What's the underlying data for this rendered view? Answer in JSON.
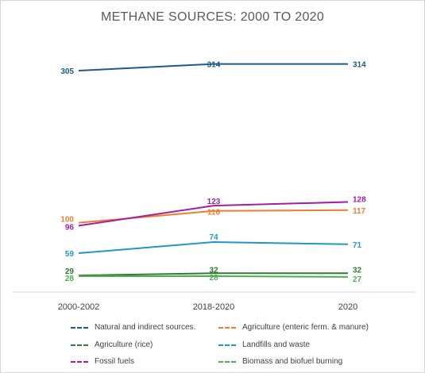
{
  "chart_data": {
    "type": "line",
    "title": "METHANE SOURCES: 2000 TO 2020",
    "categories": [
      "2000-2002",
      "2018-2020",
      "2020"
    ],
    "ylim": [
      0,
      340
    ],
    "grid": false,
    "legend_position": "bottom",
    "series": [
      {
        "name": "Natural and indirect sources.",
        "color": "#1f5a8a",
        "values": [
          305,
          314,
          314
        ]
      },
      {
        "name": "Agriculture (enteric ferm. & manure)",
        "color": "#ed7d31",
        "values": [
          100,
          116,
          117
        ]
      },
      {
        "name": "Agriculture (rice)",
        "color": "#2e7d32",
        "values": [
          29,
          32,
          32
        ]
      },
      {
        "name": "Landfills and waste",
        "color": "#2196c8",
        "values": [
          59,
          74,
          71
        ]
      },
      {
        "name": "Fossil fuels",
        "color": "#a020a0",
        "values": [
          96,
          123,
          128
        ]
      },
      {
        "name": "Biomass and biofuel burning",
        "color": "#4caf50",
        "values": [
          28,
          28,
          27
        ]
      }
    ]
  }
}
